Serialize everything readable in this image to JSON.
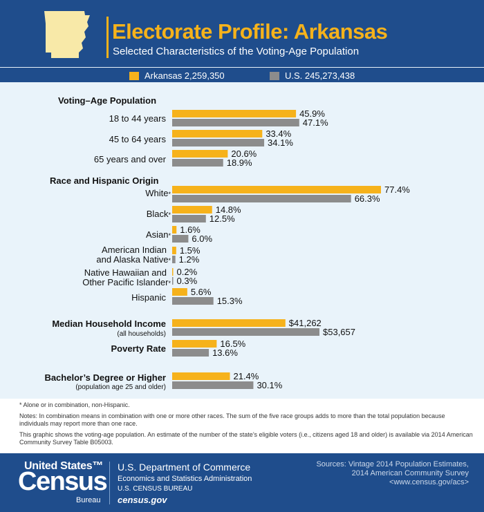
{
  "header": {
    "title": "Electorate Profile: Arkansas",
    "subtitle": "Selected Characteristics of the Voting-Age Population"
  },
  "legend": {
    "state_label": "Arkansas 2,259,350",
    "us_label": "U.S. 245,273,438"
  },
  "colors": {
    "state": "#f6b21b",
    "us": "#8c8c8c",
    "navy": "#1f4d8c",
    "panel": "#e9f3fa"
  },
  "chart_data": {
    "type": "bar",
    "orientation": "horizontal",
    "series_names": [
      "Arkansas 2,259,350",
      "U.S. 245,273,438"
    ],
    "sections": [
      {
        "heading": "Voting–Age Population",
        "rows": [
          {
            "label": "18 to 44 years",
            "state": 45.9,
            "us": 47.1,
            "state_text": "45.9%",
            "us_text": "47.1%"
          },
          {
            "label": "45 to 64 years",
            "state": 33.4,
            "us": 34.1,
            "state_text": "33.4%",
            "us_text": "34.1%"
          },
          {
            "label": "65 years and over",
            "state": 20.6,
            "us": 18.9,
            "state_text": "20.6%",
            "us_text": "18.9%"
          }
        ]
      },
      {
        "heading": "Race and Hispanic Origin",
        "rows": [
          {
            "label": "White",
            "asterisk": "*",
            "state": 77.4,
            "us": 66.3,
            "state_text": "77.4%",
            "us_text": "66.3%"
          },
          {
            "label": "Black",
            "asterisk": "*",
            "state": 14.8,
            "us": 12.5,
            "state_text": "14.8%",
            "us_text": "12.5%"
          },
          {
            "label": "Asian",
            "asterisk": "*",
            "state": 1.6,
            "us": 6.0,
            "state_text": "1.6%",
            "us_text": "6.0%"
          },
          {
            "label_line1": "American Indian",
            "label_line2": "and Alaska Native",
            "asterisk": "*",
            "state": 1.5,
            "us": 1.2,
            "state_text": "1.5%",
            "us_text": "1.2%"
          },
          {
            "label_line1": "Native Hawaiian and",
            "label_line2": "Other Pacific Islander",
            "asterisk": "*",
            "state": 0.2,
            "us": 0.3,
            "state_text": "0.2%",
            "us_text": "0.3%"
          },
          {
            "label": "Hispanic",
            "state": 5.6,
            "us": 15.3,
            "state_text": "5.6%",
            "us_text": "15.3%"
          }
        ]
      },
      {
        "rows": [
          {
            "label": "Median Household Income",
            "sublabel": "(all households)",
            "bold": true,
            "state": 41262,
            "us": 53657,
            "state_text": "$41,262",
            "us_text": "$53,657"
          },
          {
            "label": "Poverty Rate",
            "bold": true,
            "state": 16.5,
            "us": 13.6,
            "state_text": "16.5%",
            "us_text": "13.6%"
          },
          {
            "label": "Bachelor’s Degree or Higher",
            "sublabel": "(population age 25 and older)",
            "bold": true,
            "state": 21.4,
            "us": 30.1,
            "state_text": "21.4%",
            "us_text": "30.1%"
          }
        ]
      }
    ]
  },
  "notes": {
    "asterisk_note": "* Alone or in combination, non-Hispanic.",
    "note1": "Notes: In combination means in combination with one or more other races. The sum of the five race groups adds to more than the total population because individuals may report more than one race.",
    "note2": "This graphic shows the voting-age population. An estimate of the number of the state’s eligible voters (i.e., citizens aged 18 and older) is available via 2014 American Community Survey Table B05003."
  },
  "footer": {
    "logo_us": "United States™",
    "logo_census": "Census",
    "logo_bureau": "Bureau",
    "dept": "U.S. Department of Commerce",
    "esa": "Economics and Statistics Administration",
    "bureau": "U.S. CENSUS BUREAU",
    "site": "census.gov",
    "sources_line1": "Sources: Vintage 2014 Population Estimates,",
    "sources_line2": "2014 American Community Survey",
    "sources_line3": "<www.census.gov/acs>"
  }
}
